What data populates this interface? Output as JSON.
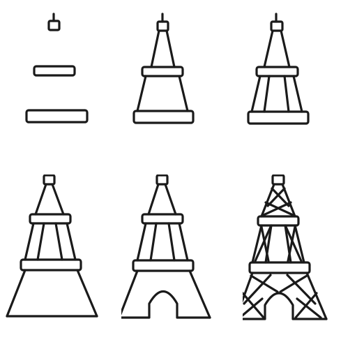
{
  "sheet": {
    "subject": "eiffel-tower-drawing-steps",
    "ink_color": "#1a1a1a",
    "background_color": "#ffffff",
    "steps": [
      {
        "step": 1,
        "name": "top-box-and-two-platforms"
      },
      {
        "step": 2,
        "name": "add-upper-legs-and-base-legs"
      },
      {
        "step": 3,
        "name": "add-inner-legs"
      },
      {
        "step": 4,
        "name": "add-lower-legs"
      },
      {
        "step": 5,
        "name": "add-arch"
      },
      {
        "step": 6,
        "name": "add-cross-bracing"
      }
    ]
  }
}
